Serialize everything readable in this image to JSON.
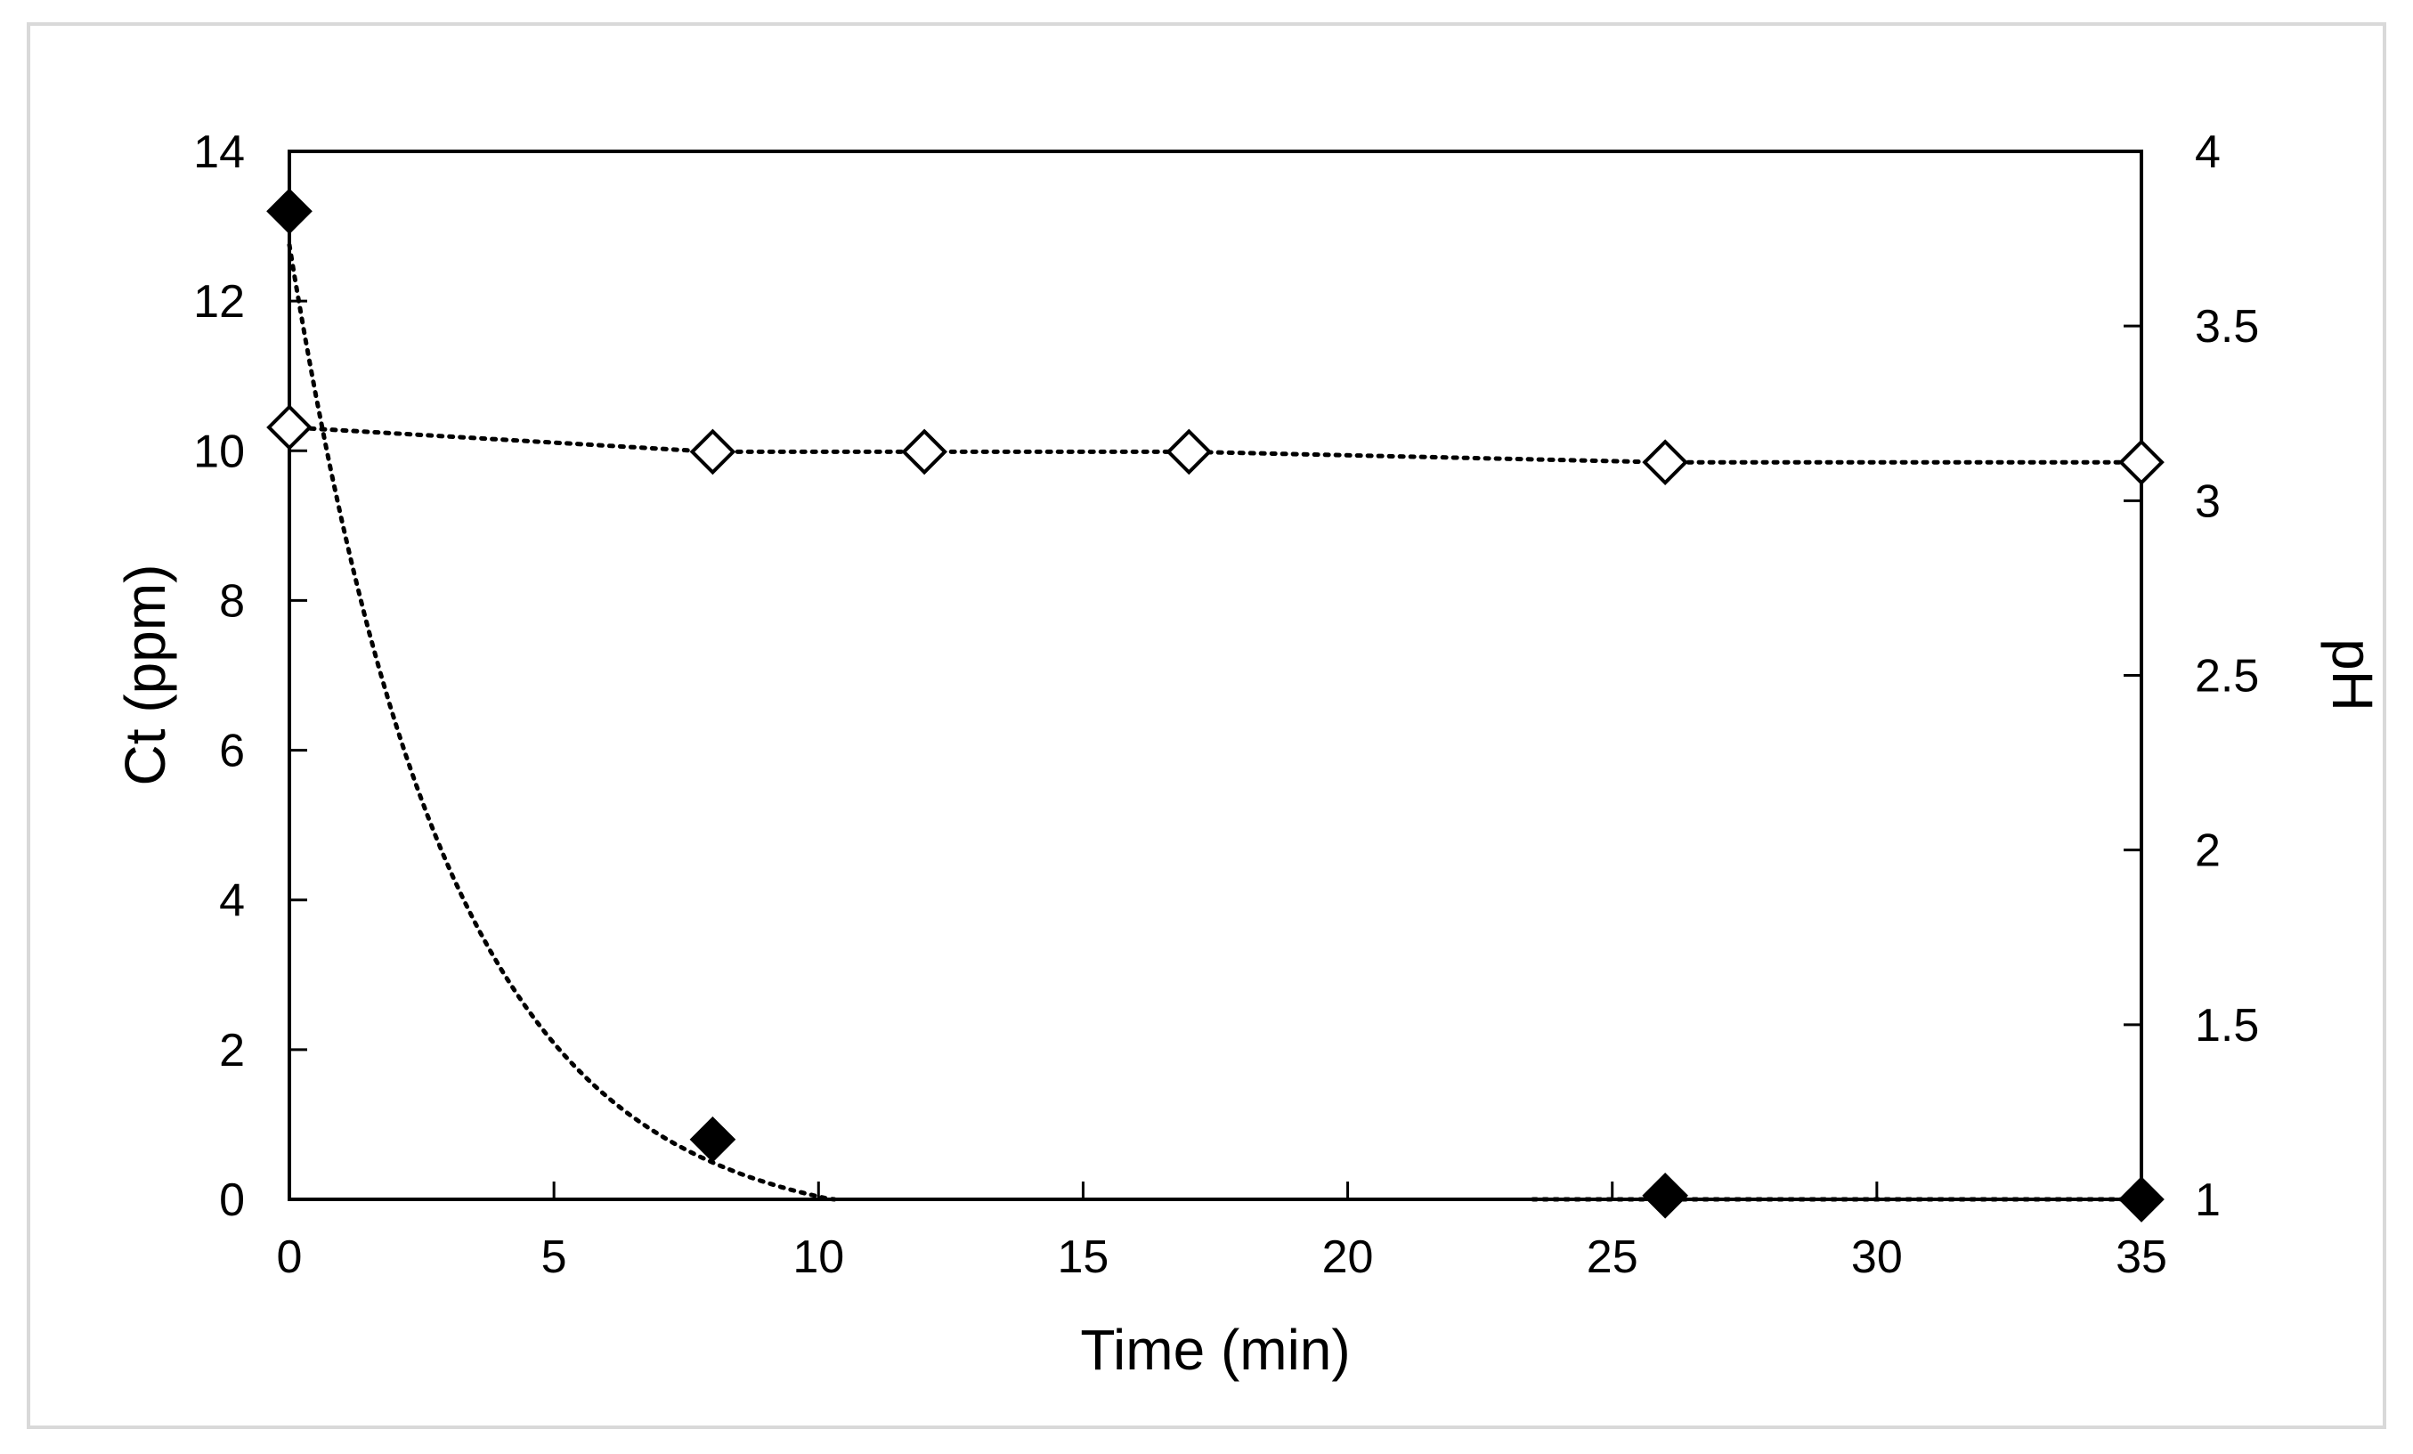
{
  "chart_data": {
    "type": "scatter",
    "xlabel": "Time (min)",
    "ylabel_left": "Ct (ppm)",
    "ylabel_right": "pH",
    "xlim": [
      0,
      35
    ],
    "ylim_left": [
      0,
      14
    ],
    "ylim_right": [
      1,
      4
    ],
    "x_ticks": [
      0,
      5,
      10,
      15,
      20,
      25,
      30,
      35
    ],
    "y_left_ticks": [
      0,
      2,
      4,
      6,
      8,
      10,
      12,
      14
    ],
    "y_right_ticks": [
      1,
      1.5,
      2,
      2.5,
      3,
      3.5,
      4
    ],
    "grid": false,
    "legend": "none",
    "series": [
      {
        "axis": "left",
        "marker": "filled-diamond",
        "line": "dotted",
        "x": [
          0,
          8,
          26,
          35
        ],
        "y": [
          13.2,
          0.8,
          0.05,
          0
        ]
      },
      {
        "axis": "right",
        "marker": "open-diamond",
        "line": "dotted",
        "x": [
          0,
          8,
          12,
          17,
          26,
          35
        ],
        "y": [
          3.21,
          3.14,
          3.14,
          3.14,
          3.11,
          3.11
        ]
      }
    ]
  }
}
